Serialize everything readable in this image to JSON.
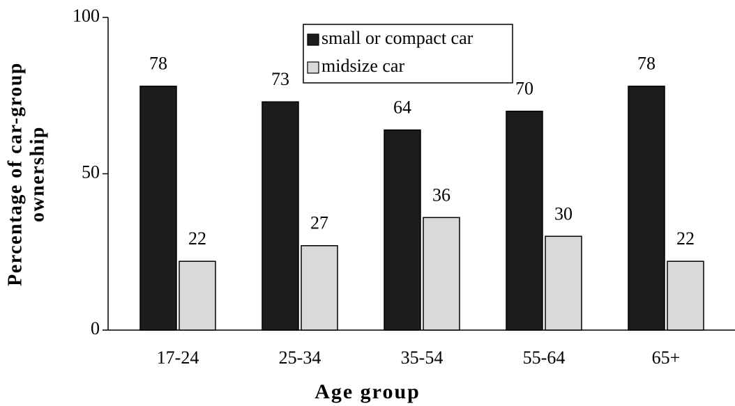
{
  "chart_data": {
    "type": "bar",
    "xlabel": "Age group",
    "ylabel": [
      "Percentage of car-group",
      "ownership"
    ],
    "categories": [
      "17-24",
      "25-34",
      "35-54",
      "55-64",
      "65+"
    ],
    "series": [
      {
        "name": "small or compact car",
        "color": "#1c1c1c",
        "values": [
          78,
          73,
          64,
          70,
          78
        ]
      },
      {
        "name": "midsize car",
        "color": "#d9d9d9",
        "values": [
          22,
          27,
          36,
          30,
          22
        ]
      }
    ],
    "ylim": [
      0,
      100
    ],
    "yticks": [
      0,
      50,
      100
    ],
    "legend": "top",
    "value_labels_shown": true
  }
}
